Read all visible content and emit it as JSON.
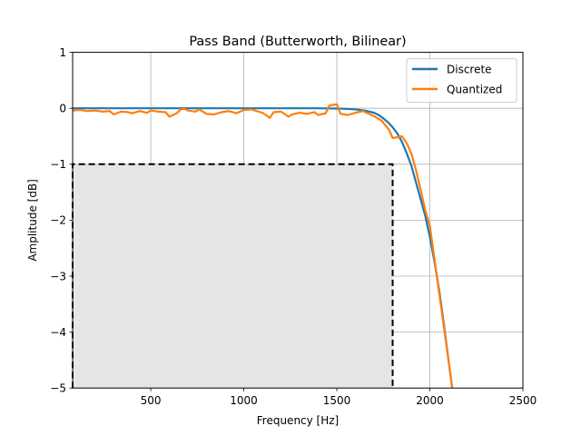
{
  "chart_data": {
    "type": "line",
    "title": "Pass Band (Butterworth, Bilinear)",
    "xlabel": "Frequency [Hz]",
    "ylabel": "Amplitude [dB]",
    "xlim": [
      80,
      2500
    ],
    "ylim": [
      -5,
      1
    ],
    "grid": true,
    "legend_position": "top-right",
    "x_ticks": [
      500,
      1000,
      1500,
      2000,
      2500
    ],
    "x_tick_labels": [
      "500",
      "1000",
      "1500",
      "2000",
      "2500"
    ],
    "y_ticks": [
      1,
      0,
      -1,
      -2,
      -3,
      -4,
      -5
    ],
    "y_tick_labels": [
      "1",
      "0",
      "−1",
      "−2",
      "−3",
      "−4",
      "−5"
    ],
    "series": [
      {
        "name": "Discrete",
        "color": "#1f77b4",
        "x": [
          80,
          200,
          400,
          600,
          800,
          1000,
          1200,
          1400,
          1500,
          1550,
          1600,
          1650,
          1700,
          1725,
          1750,
          1775,
          1800,
          1825,
          1850,
          1875,
          1900,
          1925,
          1950,
          1975,
          2000,
          2025,
          2050,
          2075,
          2100,
          2120
        ],
        "y": [
          0,
          0,
          0,
          0,
          0,
          0,
          0,
          0,
          -0.005,
          -0.01,
          -0.02,
          -0.04,
          -0.08,
          -0.12,
          -0.18,
          -0.25,
          -0.34,
          -0.45,
          -0.6,
          -0.8,
          -1.02,
          -1.32,
          -1.62,
          -1.92,
          -2.3,
          -2.75,
          -3.25,
          -3.85,
          -4.5,
          -5
        ]
      },
      {
        "name": "Quantized",
        "color": "#ff7f0e",
        "x": [
          80,
          120,
          160,
          200,
          240,
          280,
          300,
          340,
          380,
          400,
          440,
          480,
          500,
          540,
          580,
          600,
          640,
          660,
          680,
          700,
          740,
          760,
          800,
          840,
          880,
          920,
          960,
          1000,
          1040,
          1080,
          1100,
          1140,
          1160,
          1200,
          1240,
          1260,
          1300,
          1340,
          1380,
          1400,
          1440,
          1460,
          1500,
          1520,
          1560,
          1600,
          1640,
          1700,
          1740,
          1780,
          1800,
          1825,
          1850,
          1875,
          1900,
          1925,
          1950,
          1975,
          2000,
          2025,
          2050,
          2075,
          2100,
          2120
        ],
        "y": [
          -0.04,
          -0.03,
          -0.05,
          -0.04,
          -0.06,
          -0.05,
          -0.11,
          -0.06,
          -0.07,
          -0.09,
          -0.05,
          -0.08,
          -0.04,
          -0.06,
          -0.07,
          -0.15,
          -0.09,
          -0.02,
          -0.01,
          -0.04,
          -0.06,
          -0.02,
          -0.1,
          -0.11,
          -0.07,
          -0.05,
          -0.09,
          -0.03,
          -0.02,
          -0.06,
          -0.08,
          -0.17,
          -0.07,
          -0.06,
          -0.15,
          -0.11,
          -0.08,
          -0.1,
          -0.07,
          -0.12,
          -0.09,
          0.05,
          0.07,
          -0.1,
          -0.12,
          -0.08,
          -0.05,
          -0.14,
          -0.22,
          -0.38,
          -0.53,
          -0.52,
          -0.5,
          -0.62,
          -0.8,
          -1.1,
          -1.45,
          -1.82,
          -2.1,
          -2.7,
          -3.3,
          -3.9,
          -4.5,
          -5
        ]
      }
    ],
    "shaded_region": {
      "x_range": [
        80,
        1800
      ],
      "y_range": [
        -5,
        -1
      ],
      "fill_color": "#e5e5e5",
      "border_color": "#000000",
      "border_style": "dashed"
    }
  }
}
